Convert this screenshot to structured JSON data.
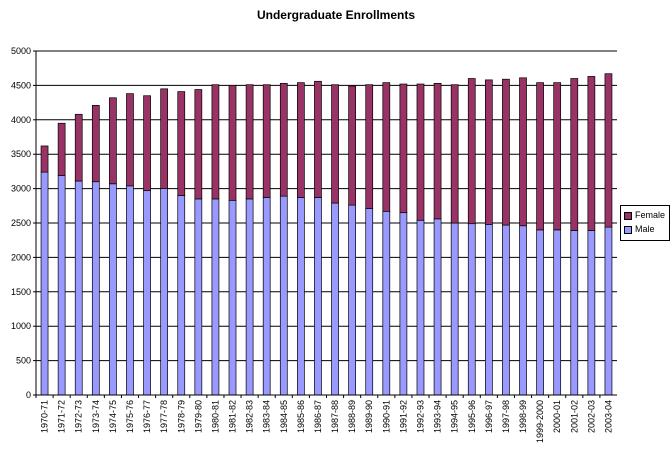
{
  "chart_data": {
    "type": "bar",
    "stacked": true,
    "title": "Undergraduate Enrollments",
    "xlabel": "",
    "ylabel": "",
    "ylim": [
      0,
      5000
    ],
    "yticks": [
      0,
      500,
      1000,
      1500,
      2000,
      2500,
      3000,
      3500,
      4000,
      4500,
      5000
    ],
    "grid": true,
    "legend_position": "right",
    "categories": [
      "1970-71",
      "1971-72",
      "1972-73",
      "1973-74",
      "1974-75",
      "1975-76",
      "1976-77",
      "1977-78",
      "1978-79",
      "1979-80",
      "1980-81",
      "1981-82",
      "1982-83",
      "1983-84",
      "1984-85",
      "1985-86",
      "1986-87",
      "1987-88",
      "1988-89",
      "1989-90",
      "1990-91",
      "1991-92",
      "1992-93",
      "1993-94",
      "1994-95",
      "1995-96",
      "1996-97",
      "1997-98",
      "1998-99",
      "1999-2000",
      "2000-01",
      "2001-02",
      "2002-03",
      "2003-04"
    ],
    "series": [
      {
        "name": "Male",
        "color": "#9999FF",
        "values": [
          3240,
          3190,
          3110,
          3100,
          3070,
          3040,
          2970,
          3000,
          2900,
          2850,
          2850,
          2830,
          2850,
          2870,
          2890,
          2870,
          2870,
          2790,
          2760,
          2710,
          2670,
          2650,
          2540,
          2560,
          2500,
          2490,
          2480,
          2470,
          2460,
          2400,
          2400,
          2390,
          2390,
          2440
        ]
      },
      {
        "name": "Female",
        "color": "#993366",
        "values": [
          380,
          760,
          970,
          1110,
          1250,
          1340,
          1380,
          1450,
          1510,
          1590,
          1660,
          1670,
          1660,
          1640,
          1640,
          1670,
          1690,
          1720,
          1730,
          1800,
          1870,
          1870,
          1980,
          1970,
          2010,
          2110,
          2100,
          2120,
          2150,
          2140,
          2140,
          2210,
          2240,
          2230
        ]
      }
    ]
  }
}
